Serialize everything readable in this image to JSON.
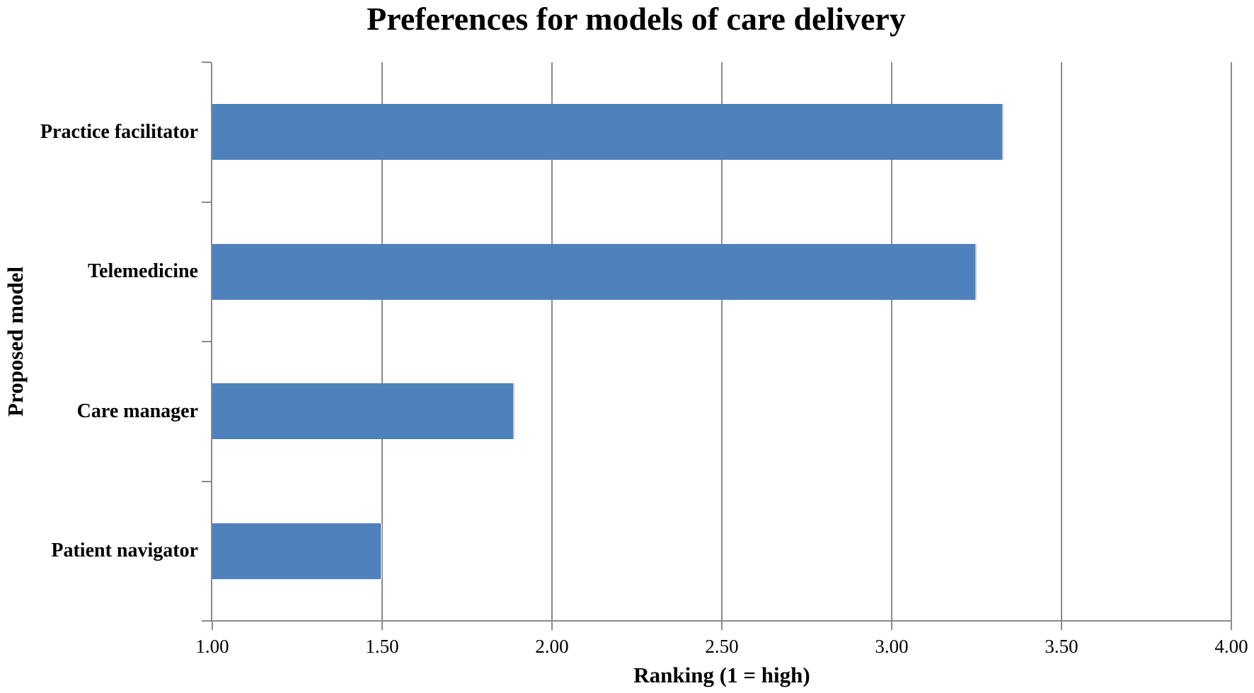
{
  "chart_data": {
    "type": "bar",
    "orientation": "horizontal",
    "title": "Preferences for models of care delivery",
    "categories": [
      "Practice facilitator",
      "Telemedicine",
      "Care manager",
      "Patient navigator"
    ],
    "values": [
      3.33,
      3.25,
      1.89,
      1.5
    ],
    "xlabel": "Ranking (1 = high)",
    "ylabel": "Proposed model",
    "xlim": [
      1.0,
      4.0
    ],
    "xticks": [
      1.0,
      1.5,
      2.0,
      2.5,
      3.0,
      3.5,
      4.0
    ],
    "xtick_labels": [
      "1.00",
      "1.50",
      "2.00",
      "2.50",
      "3.00",
      "3.50",
      "4.00"
    ],
    "grid": true,
    "legend": false,
    "gap_style": "bars occupy ~40% of each category band",
    "bar_color": "#4F81BD",
    "bar_edge_color": "#B7C9E4",
    "axis_color": "#8B8B8B",
    "text_color": "#000000",
    "background_color": "#FFFFFF"
  }
}
